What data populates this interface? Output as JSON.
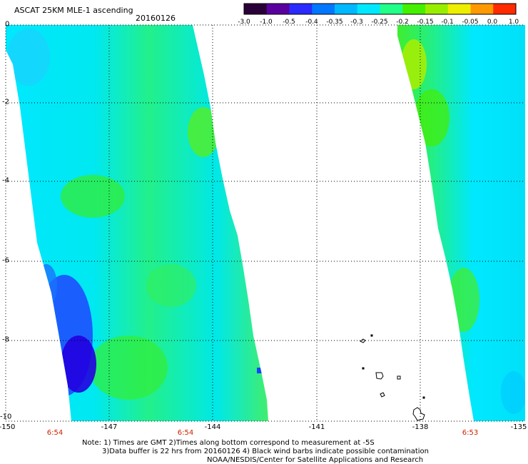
{
  "title": "ASCAT 25KM MLE-1 ascending",
  "date": "20160126",
  "colorbar": {
    "ticks": [
      "-3.0",
      "-1.0",
      "-0.5",
      "-0.4",
      "-0.35",
      "-0.3",
      "-0.25",
      "-0.2",
      "-0.15",
      "-0.1",
      "-0.05",
      "0.0",
      "1.0"
    ],
    "colors": [
      "#2a0038",
      "#5a00a0",
      "#2a2aff",
      "#0077ff",
      "#00b8ff",
      "#00e8ff",
      "#22ff88",
      "#44f000",
      "#99ee00",
      "#eeee00",
      "#ff9900",
      "#ff2a00"
    ]
  },
  "axes": {
    "lat_labels": [
      "0",
      "-2",
      "-4",
      "-6",
      "-8",
      "-10"
    ],
    "lon_labels": [
      "-150",
      "-147",
      "-144",
      "-141",
      "-138",
      "-135"
    ]
  },
  "times": [
    "6:54",
    "6:54",
    "6:53"
  ],
  "notes": [
    "Note: 1) Times are GMT 2)Times along bottom correspond to measurement at -5S",
    "3)Data buffer is 22 hrs from 20160126 4) Black wind barbs indicate possible contamination",
    "NOAA/NESDIS/Center for Satellite Applications and Research"
  ]
}
